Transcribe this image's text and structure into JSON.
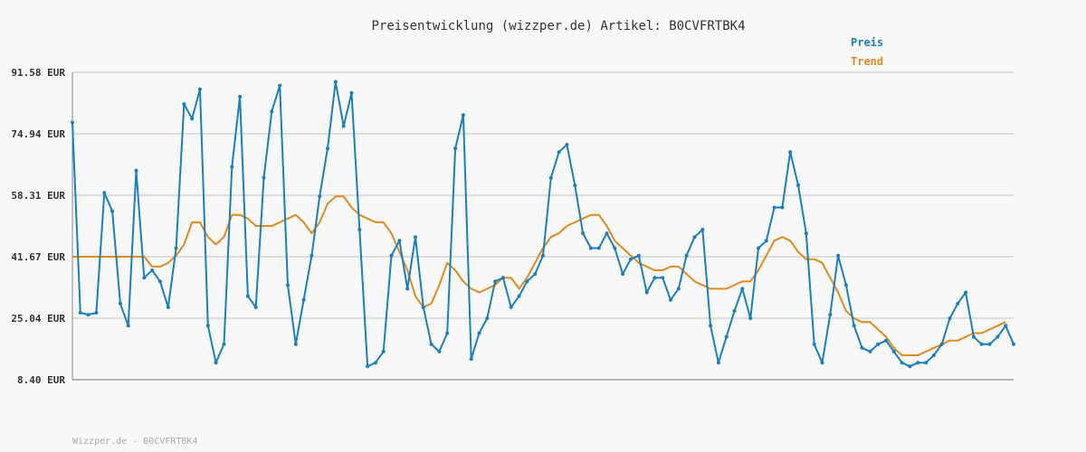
{
  "chart_data": {
    "type": "line",
    "title": "Preisentwicklung (wizzper.de) Artikel: B0CVFRTBK4",
    "ylim": [
      8.4,
      91.58
    ],
    "yticks": [
      "91.58 EUR",
      "74.94 EUR",
      "58.31 EUR",
      "41.67 EUR",
      "25.04 EUR",
      "8.40 EUR"
    ],
    "ytick_values": [
      91.58,
      74.94,
      58.31,
      41.67,
      25.04,
      8.4
    ],
    "grid": true,
    "legend_position": "top-right",
    "series": [
      {
        "name": "Preis",
        "color": "#1a7fc0",
        "values": [
          78,
          26.5,
          26,
          26.5,
          59,
          54,
          29,
          23,
          65,
          36,
          38,
          35,
          28,
          44,
          83,
          79,
          87,
          23,
          13,
          18,
          66,
          85,
          31,
          28,
          63,
          81,
          88,
          34,
          18,
          30,
          42,
          58,
          71,
          89,
          77,
          86,
          49,
          12,
          13,
          16,
          42,
          46,
          33,
          47,
          28,
          18,
          16,
          21,
          71,
          80,
          14,
          21,
          25,
          35,
          36,
          28,
          31,
          35,
          37,
          42,
          63,
          70,
          72,
          61,
          48,
          44,
          44,
          48,
          44,
          37,
          41,
          42,
          32,
          36,
          36,
          30,
          33,
          42,
          47,
          49,
          23,
          13,
          20,
          27,
          33,
          25,
          44,
          46,
          55,
          55,
          70,
          61,
          48,
          18,
          13,
          26,
          42,
          34,
          23,
          17,
          16,
          18,
          19,
          16,
          13,
          12,
          13,
          13,
          15,
          18,
          25,
          29,
          32,
          20,
          18,
          18,
          20,
          23,
          18
        ],
        "labels": [
          "Preis"
        ]
      },
      {
        "name": "Trend",
        "color": "#e08a1e",
        "values": [
          41.67,
          41.67,
          41.67,
          41.67,
          41.67,
          41.67,
          41.67,
          41.67,
          41.67,
          41.67,
          39,
          39,
          40,
          42,
          45,
          51,
          51,
          47,
          45,
          47,
          53,
          53,
          52,
          50,
          50,
          50,
          51,
          52,
          53,
          51,
          48,
          51,
          56,
          58,
          58,
          55,
          53,
          52,
          51,
          51,
          48,
          43,
          38,
          31,
          28,
          29,
          34,
          40,
          38,
          35,
          33,
          32,
          33,
          34,
          36,
          36,
          33,
          36,
          40,
          44,
          47,
          48,
          50,
          51,
          52,
          53,
          53,
          50,
          46,
          44,
          42,
          40,
          39,
          38,
          38,
          39,
          39,
          37,
          35,
          34,
          33,
          33,
          33,
          34,
          35,
          35,
          38,
          42,
          46,
          47,
          46,
          43,
          41,
          41,
          40,
          36,
          32,
          27,
          25,
          24,
          24,
          22,
          20,
          17,
          15,
          15,
          15,
          16,
          17,
          18,
          19,
          19,
          20,
          21,
          21,
          22,
          23,
          24
        ],
        "labels": [
          "Trend"
        ]
      }
    ],
    "x_count": 119
  },
  "footer": "Wizzper.de - B0CVFRTBK4"
}
